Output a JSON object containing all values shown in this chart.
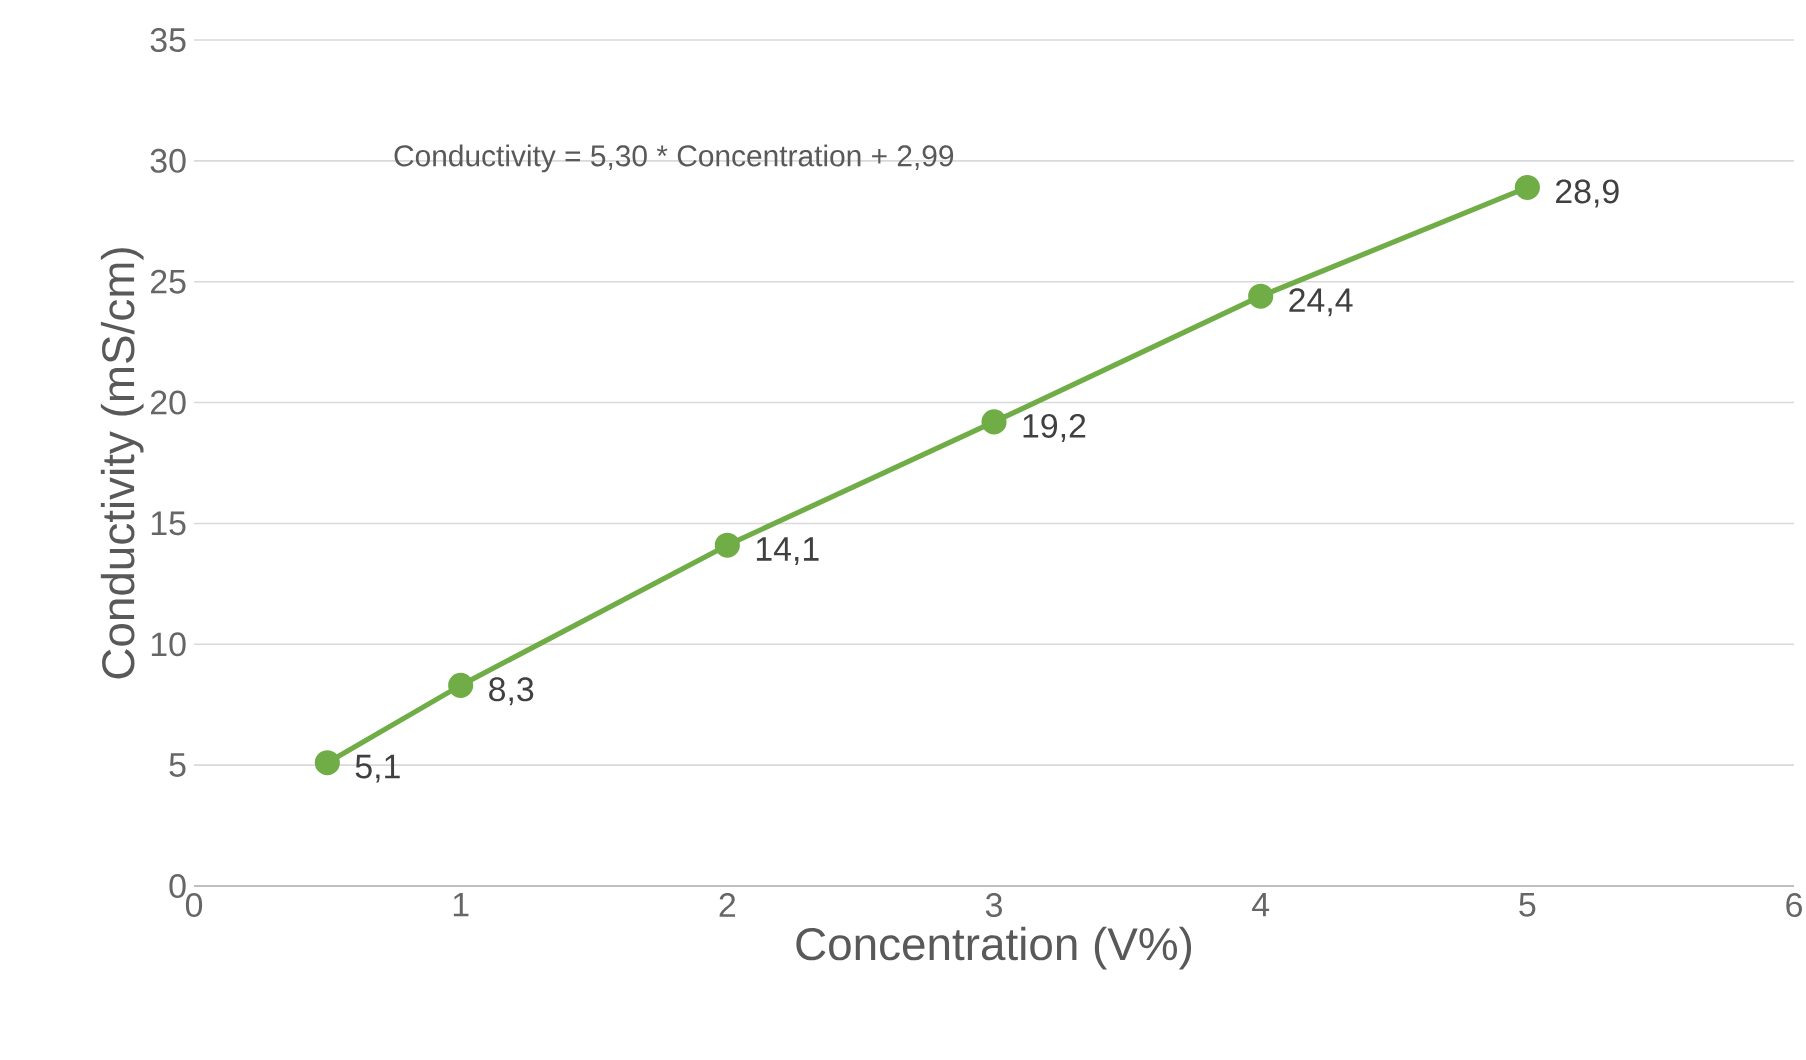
{
  "chart_data": {
    "type": "line",
    "xlabel": "Concentration (V%)",
    "ylabel": "Conductivity (mS/cm)",
    "x": [
      0.5,
      1,
      2,
      3,
      4,
      5
    ],
    "series": [
      {
        "color": "#70ad47",
        "values": [
          5.1,
          8.3,
          14.1,
          19.2,
          24.4,
          28.9
        ],
        "value_labels": [
          "5,1",
          "8,3",
          "14,1",
          "19,2",
          "24,4",
          "28,9"
        ]
      }
    ],
    "xlim": [
      0,
      6
    ],
    "xticks": [
      0,
      1,
      2,
      3,
      4,
      5,
      6
    ],
    "ylim": [
      0,
      35
    ],
    "yticks": [
      0,
      5,
      10,
      15,
      20,
      25,
      30,
      35
    ],
    "grid": "y",
    "marker": "circle",
    "annotations": [
      "Conductivity = 5,30 * Concentration + 2,99"
    ]
  }
}
